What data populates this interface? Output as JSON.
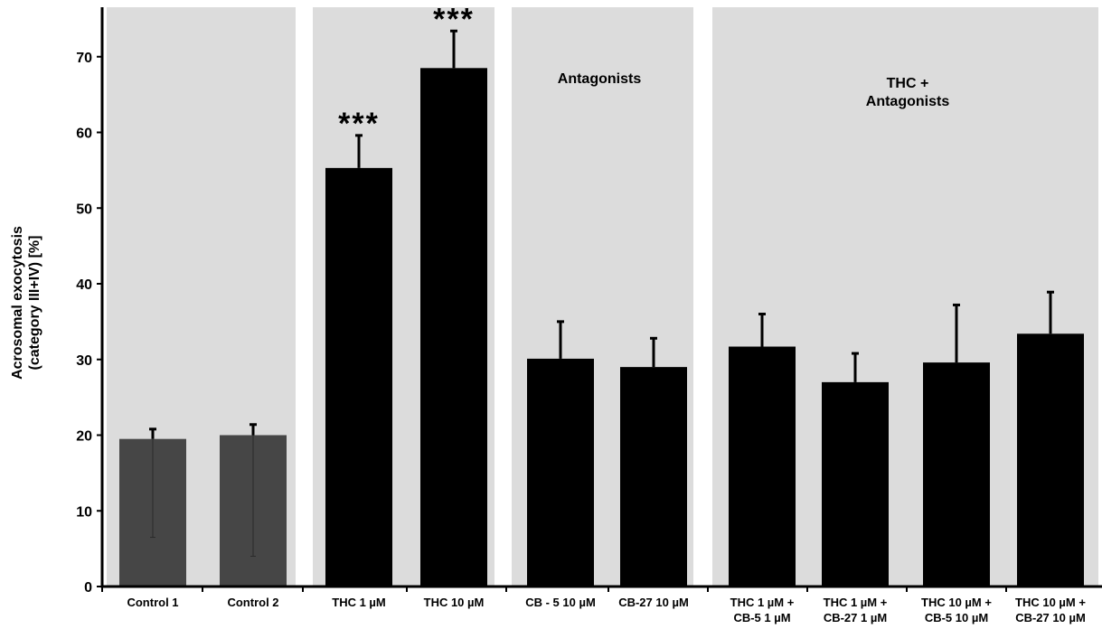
{
  "chart_data": {
    "type": "bar",
    "ylabel_lines": [
      "Acrosomal exocytosis",
      "(category III+IV) [%]"
    ],
    "ylim": [
      0,
      75
    ],
    "yticks": [
      0,
      10,
      20,
      30,
      40,
      50,
      60,
      70
    ],
    "grid": false,
    "categories": [
      [
        "Control 1"
      ],
      [
        "Control 2"
      ],
      [
        "THC 1 µM"
      ],
      [
        "THC 10 µM"
      ],
      [
        "CB - 5 10 µM"
      ],
      [
        "CB-27 10 µM"
      ],
      [
        "THC 1 µM +",
        "CB-5 1 µM"
      ],
      [
        "THC 1 µM +",
        "CB-27 1 µM"
      ],
      [
        "THC 10 µM +",
        "CB-5 10 µM"
      ],
      [
        "THC 10 µM +",
        "CB-27 10 µM"
      ]
    ],
    "values": [
      19.5,
      20.0,
      55.3,
      68.5,
      30.1,
      29.0,
      31.7,
      27.0,
      29.6,
      33.4
    ],
    "errors": [
      1.3,
      1.4,
      4.3,
      4.9,
      4.9,
      3.8,
      4.3,
      3.8,
      7.6,
      5.5
    ],
    "lower_errors": [
      13.0,
      16.0,
      null,
      null,
      null,
      null,
      null,
      null,
      null,
      null
    ],
    "bar_colors": [
      "#464646",
      "#464646",
      "#000000",
      "#000000",
      "#000000",
      "#000000",
      "#000000",
      "#000000",
      "#000000",
      "#000000"
    ],
    "significance": [
      "",
      "",
      "***",
      "***",
      "",
      "",
      "",
      "",
      "",
      ""
    ],
    "groups": [
      {
        "label_lines": [],
        "start": 0,
        "end": 1
      },
      {
        "label_lines": [],
        "start": 2,
        "end": 3
      },
      {
        "label_lines": [
          "Antagonists"
        ],
        "start": 4,
        "end": 5
      },
      {
        "label_lines": [
          "THC +",
          "Antagonists"
        ],
        "start": 6,
        "end": 9
      }
    ],
    "panel_color": "#dcdcdc"
  }
}
